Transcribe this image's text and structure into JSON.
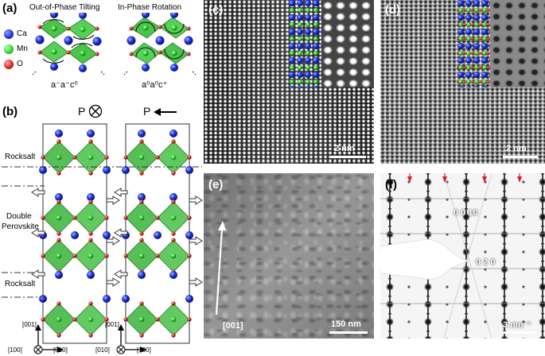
{
  "panel_a": {
    "label": "(a)",
    "left_title": "Out-of-Phase Tilting",
    "right_title": "In-Phase Rotation",
    "left_notation": "a⁻a⁻c⁰",
    "right_notation": "a⁰a⁰c⁺",
    "legend": [
      {
        "name": "Ca",
        "color": "#1a2fd6"
      },
      {
        "name": "Mn",
        "color": "#2bd12b"
      },
      {
        "name": "O",
        "color": "#d61a1a"
      }
    ]
  },
  "panel_b": {
    "label": "(b)",
    "left_polarization": "P",
    "right_polarization": "P",
    "layer_labels": [
      "Rocksalt",
      "Double",
      "Perovskite",
      "Rocksalt"
    ],
    "axes_left": {
      "vertical": "[001]",
      "out": "[100]",
      "horizontal": "[010]"
    },
    "axes_right": {
      "vertical": "[001]",
      "out": "[010]",
      "horizontal": "[100]"
    }
  },
  "panel_c": {
    "label": "(c)",
    "scale": "2 nm"
  },
  "panel_d": {
    "label": "(d)",
    "scale": "2 nm"
  },
  "panel_e": {
    "label": "(e)",
    "scale": "150 nm",
    "direction": "[001]"
  },
  "panel_f": {
    "label": "(f)",
    "scale": "3 nm⁻¹",
    "spot1": "0 0 10",
    "spot2": "0 2 0"
  }
}
